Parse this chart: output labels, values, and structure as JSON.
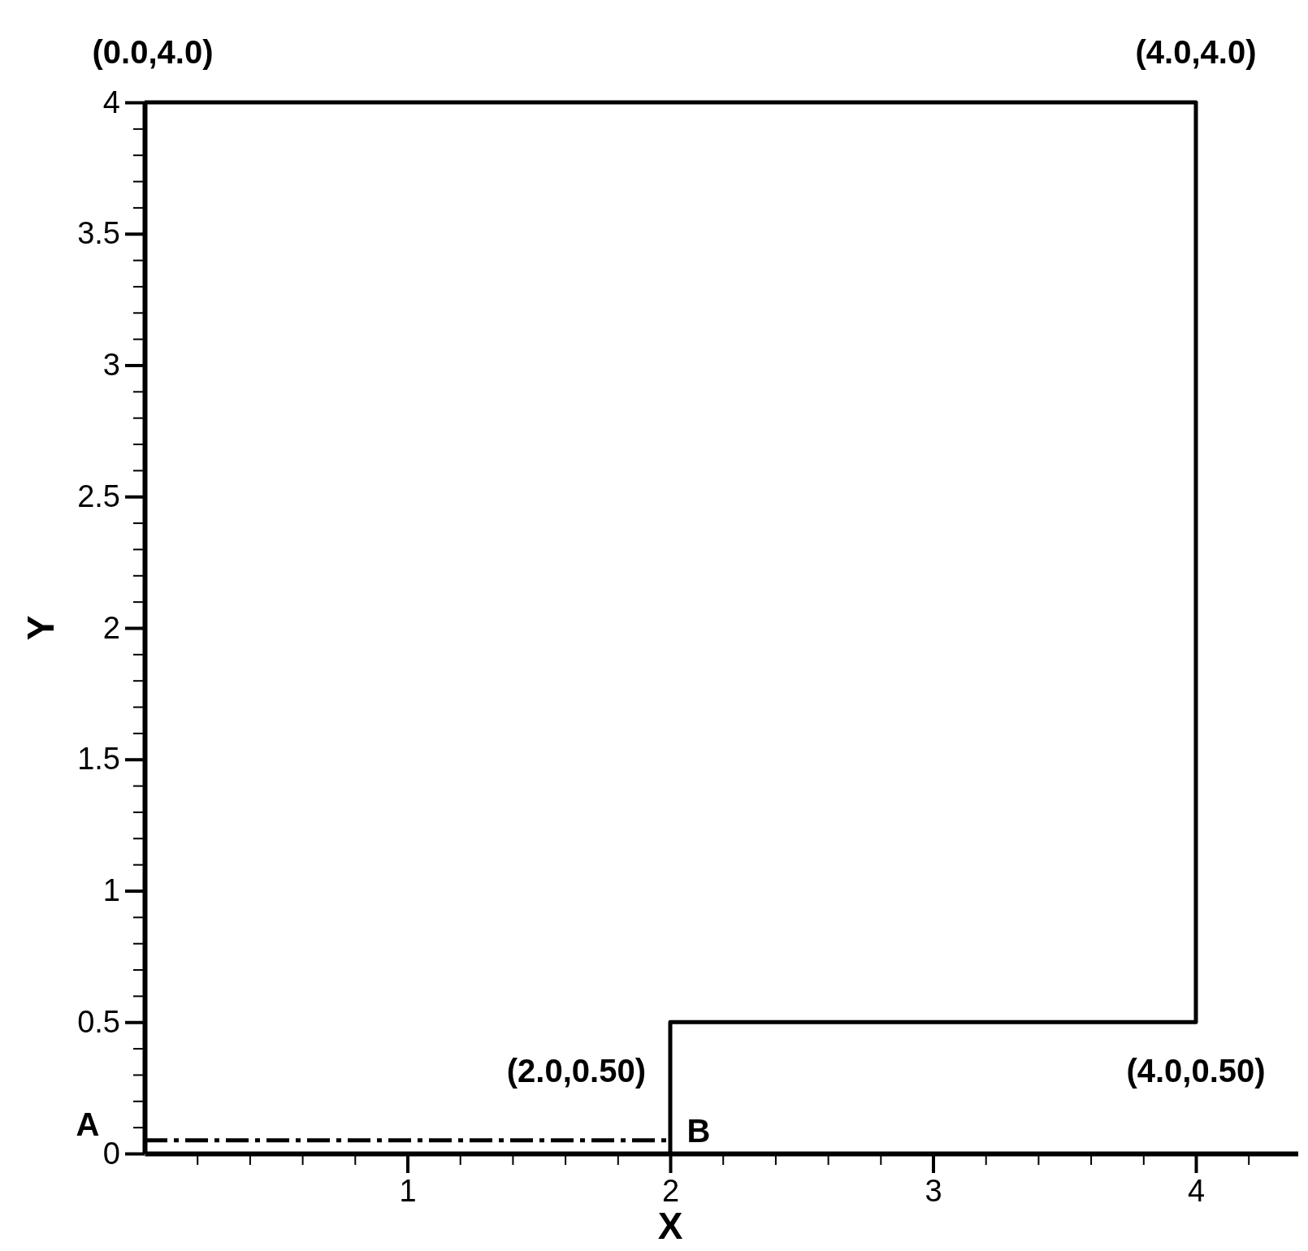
{
  "chart_data": {
    "type": "line",
    "xlabel": "X",
    "ylabel": "Y",
    "xlim": [
      0,
      4.4
    ],
    "ylim": [
      0,
      4
    ],
    "xticks": [
      {
        "value": 0.2,
        "label": null
      },
      {
        "value": 0.4,
        "label": null
      },
      {
        "value": 0.6,
        "label": null
      },
      {
        "value": 0.8,
        "label": null
      },
      1,
      {
        "value": 1.2,
        "label": null
      },
      {
        "value": 1.4,
        "label": null
      },
      {
        "value": 1.6,
        "label": null
      },
      {
        "value": 1.8,
        "label": null
      },
      2,
      {
        "value": 2.2,
        "label": null
      },
      {
        "value": 2.4,
        "label": null
      },
      {
        "value": 2.6,
        "label": null
      },
      {
        "value": 2.8,
        "label": null
      },
      3,
      {
        "value": 3.2,
        "label": null
      },
      {
        "value": 3.4,
        "label": null
      },
      {
        "value": 3.6,
        "label": null
      },
      {
        "value": 3.8,
        "label": null
      },
      4,
      {
        "value": 4.2,
        "label": null
      }
    ],
    "yticks": [
      0,
      {
        "value": 0.1,
        "label": null
      },
      {
        "value": 0.2,
        "label": null
      },
      {
        "value": 0.3,
        "label": null
      },
      {
        "value": 0.4,
        "label": null
      },
      0.5,
      {
        "value": 0.6,
        "label": null
      },
      {
        "value": 0.7,
        "label": null
      },
      {
        "value": 0.8,
        "label": null
      },
      {
        "value": 0.9,
        "label": null
      },
      1,
      {
        "value": 1.1,
        "label": null
      },
      {
        "value": 1.2,
        "label": null
      },
      {
        "value": 1.3,
        "label": null
      },
      {
        "value": 1.4,
        "label": null
      },
      1.5,
      {
        "value": 1.6,
        "label": null
      },
      {
        "value": 1.7,
        "label": null
      },
      {
        "value": 1.8,
        "label": null
      },
      {
        "value": 1.9,
        "label": null
      },
      2,
      {
        "value": 2.1,
        "label": null
      },
      {
        "value": 2.2,
        "label": null
      },
      {
        "value": 2.3,
        "label": null
      },
      {
        "value": 2.4,
        "label": null
      },
      2.5,
      {
        "value": 2.6,
        "label": null
      },
      {
        "value": 2.7,
        "label": null
      },
      {
        "value": 2.8,
        "label": null
      },
      {
        "value": 2.9,
        "label": null
      },
      3,
      {
        "value": 3.1,
        "label": null
      },
      {
        "value": 3.2,
        "label": null
      },
      {
        "value": 3.3,
        "label": null
      },
      {
        "value": 3.4,
        "label": null
      },
      3.5,
      {
        "value": 3.6,
        "label": null
      },
      {
        "value": 3.7,
        "label": null
      },
      {
        "value": 3.8,
        "label": null
      },
      {
        "value": 3.9,
        "label": null
      },
      4
    ],
    "grid": false,
    "marker": "none",
    "series": [
      {
        "color": "#000000",
        "line_style": "solid",
        "x": [
          0,
          4,
          4,
          2,
          2
        ],
        "values": [
          4,
          4,
          0.5,
          0.5,
          0
        ]
      },
      {
        "color": "#000000",
        "line_style": "dashed",
        "x": [
          0,
          2
        ],
        "values": [
          0.05,
          0.05
        ]
      }
    ],
    "annotations": [
      {
        "text": "(0.0,4.0)",
        "x": 0,
        "y": 4
      },
      {
        "text": "(4.0,4.0)",
        "x": 4,
        "y": 4
      },
      {
        "text": "(2.0,0.50)",
        "x": 2,
        "y": 0.5
      },
      {
        "text": "(4.0,0.50)",
        "x": 4,
        "y": 0.5
      },
      {
        "text": "A",
        "x": 0,
        "y": 0.05
      },
      {
        "text": "B",
        "x": 2,
        "y": 0.05
      }
    ]
  }
}
